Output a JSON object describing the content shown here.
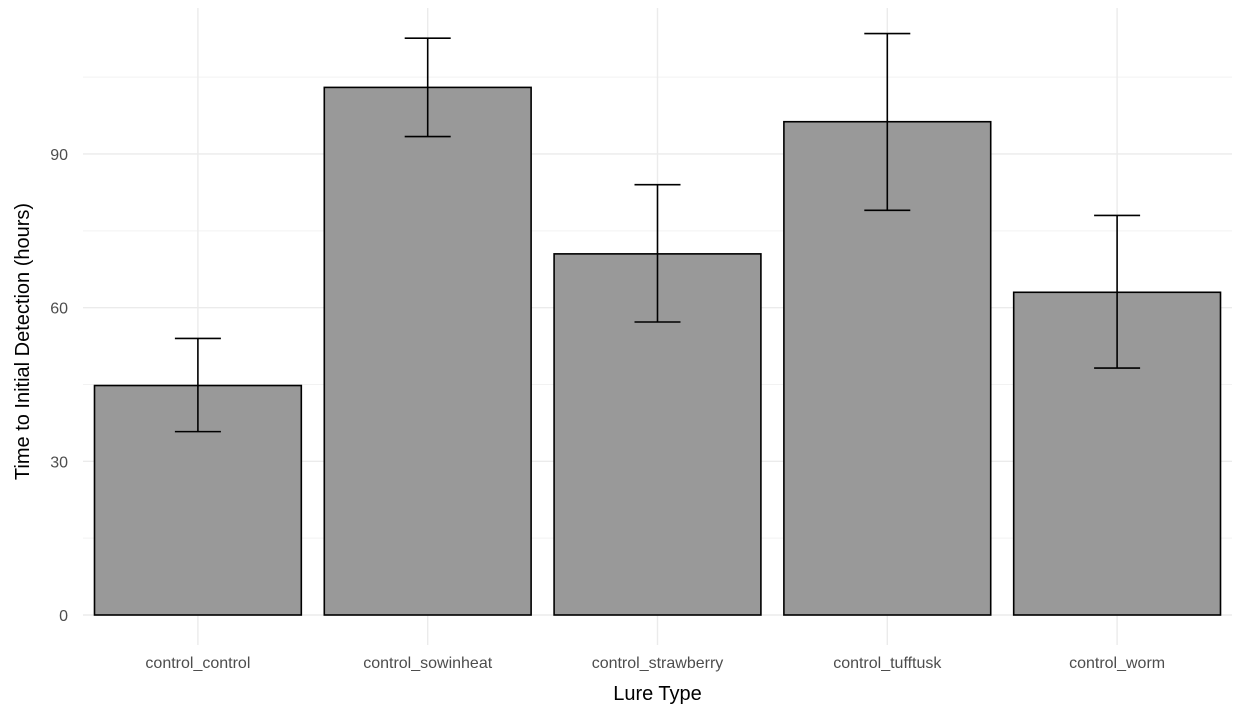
{
  "chart_data": {
    "type": "bar",
    "title": "",
    "xlabel": "Lure Type",
    "ylabel": "Time to Initial Detection (hours)",
    "categories": [
      "control_control",
      "control_sowinheat",
      "control_strawberry",
      "control_tufftusk",
      "control_worm"
    ],
    "values": [
      44.8,
      103.0,
      70.5,
      96.3,
      63.0
    ],
    "error_low": [
      35.8,
      93.4,
      57.2,
      79.0,
      48.2
    ],
    "error_high": [
      54.0,
      112.6,
      84.0,
      113.5,
      78.0
    ],
    "ylim": [
      0,
      118.5
    ],
    "yticks": [
      0,
      30,
      60,
      90
    ],
    "yminor": [
      15,
      45,
      75,
      105
    ],
    "grid": true,
    "legend": "none",
    "bar_fill": "#999999",
    "bar_stroke": "#000000",
    "grid_color": "#ebebeb"
  }
}
